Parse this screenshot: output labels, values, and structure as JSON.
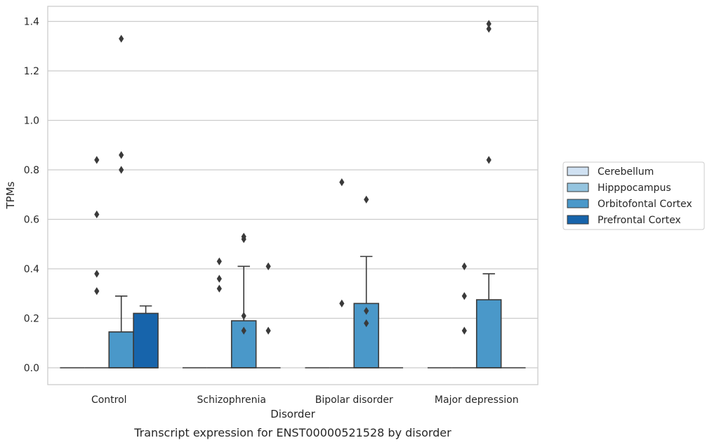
{
  "chart_data": {
    "type": "box",
    "title": "",
    "caption": "Transcript expression for ENST00000521528 by disorder",
    "xlabel": "Disorder",
    "ylabel": "TPMs",
    "ylim": [
      -0.065,
      1.46
    ],
    "yticks": [
      0.0,
      0.2,
      0.4,
      0.6,
      0.8,
      1.0,
      1.2,
      1.4
    ],
    "ytick_labels": [
      "0.0",
      "0.2",
      "0.4",
      "0.6",
      "0.8",
      "1.0",
      "1.2",
      "1.4"
    ],
    "grid": "horizontal",
    "legend_position": "right",
    "categories": [
      "Control",
      "Schizophrenia",
      "Bipolar disorder",
      "Major depression"
    ],
    "series": [
      {
        "name": "Cerebellum",
        "color": "#d0e1f2",
        "boxes": [
          {
            "q1": 0,
            "median": 0,
            "q3": 0,
            "whislo": 0,
            "whishi": 0,
            "fliers": []
          },
          {
            "q1": 0,
            "median": 0,
            "q3": 0,
            "whislo": 0,
            "whishi": 0,
            "fliers": []
          },
          {
            "q1": 0,
            "median": 0,
            "q3": 0,
            "whislo": 0,
            "whishi": 0,
            "fliers": []
          },
          {
            "q1": 0,
            "median": 0,
            "q3": 0,
            "whislo": 0,
            "whishi": 0,
            "fliers": []
          }
        ]
      },
      {
        "name": "Hipppocampus",
        "color": "#94c4df",
        "boxes": [
          {
            "q1": 0,
            "median": 0,
            "q3": 0,
            "whislo": 0,
            "whishi": 0,
            "fliers": [
              0.31,
              0.38,
              0.62,
              0.84
            ]
          },
          {
            "q1": 0,
            "median": 0,
            "q3": 0,
            "whislo": 0,
            "whishi": 0,
            "fliers": [
              0.32,
              0.36,
              0.43
            ]
          },
          {
            "q1": 0,
            "median": 0,
            "q3": 0,
            "whislo": 0,
            "whishi": 0,
            "fliers": [
              0.26,
              0.75
            ]
          },
          {
            "q1": 0,
            "median": 0,
            "q3": 0,
            "whislo": 0,
            "whishi": 0,
            "fliers": [
              0.15,
              0.29,
              0.41
            ]
          }
        ]
      },
      {
        "name": "Orbitofontal Cortex",
        "color": "#4a98c9",
        "boxes": [
          {
            "q1": 0,
            "median": 0,
            "q3": 0.145,
            "whislo": 0,
            "whishi": 0.29,
            "fliers": [
              0.8,
              0.86,
              1.33
            ]
          },
          {
            "q1": 0,
            "median": 0,
            "q3": 0.19,
            "whislo": 0,
            "whishi": 0.41,
            "fliers": [
              0.15,
              0.21,
              0.52,
              0.53
            ]
          },
          {
            "q1": 0,
            "median": 0,
            "q3": 0.26,
            "whislo": 0,
            "whishi": 0.45,
            "fliers": [
              0.18,
              0.23,
              0.68
            ]
          },
          {
            "q1": 0,
            "median": 0,
            "q3": 0.275,
            "whislo": 0,
            "whishi": 0.38,
            "fliers": [
              0.84,
              1.37,
              1.39
            ]
          }
        ]
      },
      {
        "name": "Prefrontal Cortex",
        "color": "#1764ab",
        "boxes": [
          {
            "q1": 0,
            "median": 0,
            "q3": 0.22,
            "whislo": 0,
            "whishi": 0.25,
            "fliers": []
          },
          {
            "q1": 0,
            "median": 0,
            "q3": 0,
            "whislo": 0,
            "whishi": 0,
            "fliers": [
              0.15,
              0.41
            ]
          },
          {
            "q1": 0,
            "median": 0,
            "q3": 0,
            "whislo": 0,
            "whishi": 0,
            "fliers": []
          },
          {
            "q1": 0,
            "median": 0,
            "q3": 0,
            "whislo": 0,
            "whishi": 0,
            "fliers": []
          }
        ]
      }
    ]
  }
}
